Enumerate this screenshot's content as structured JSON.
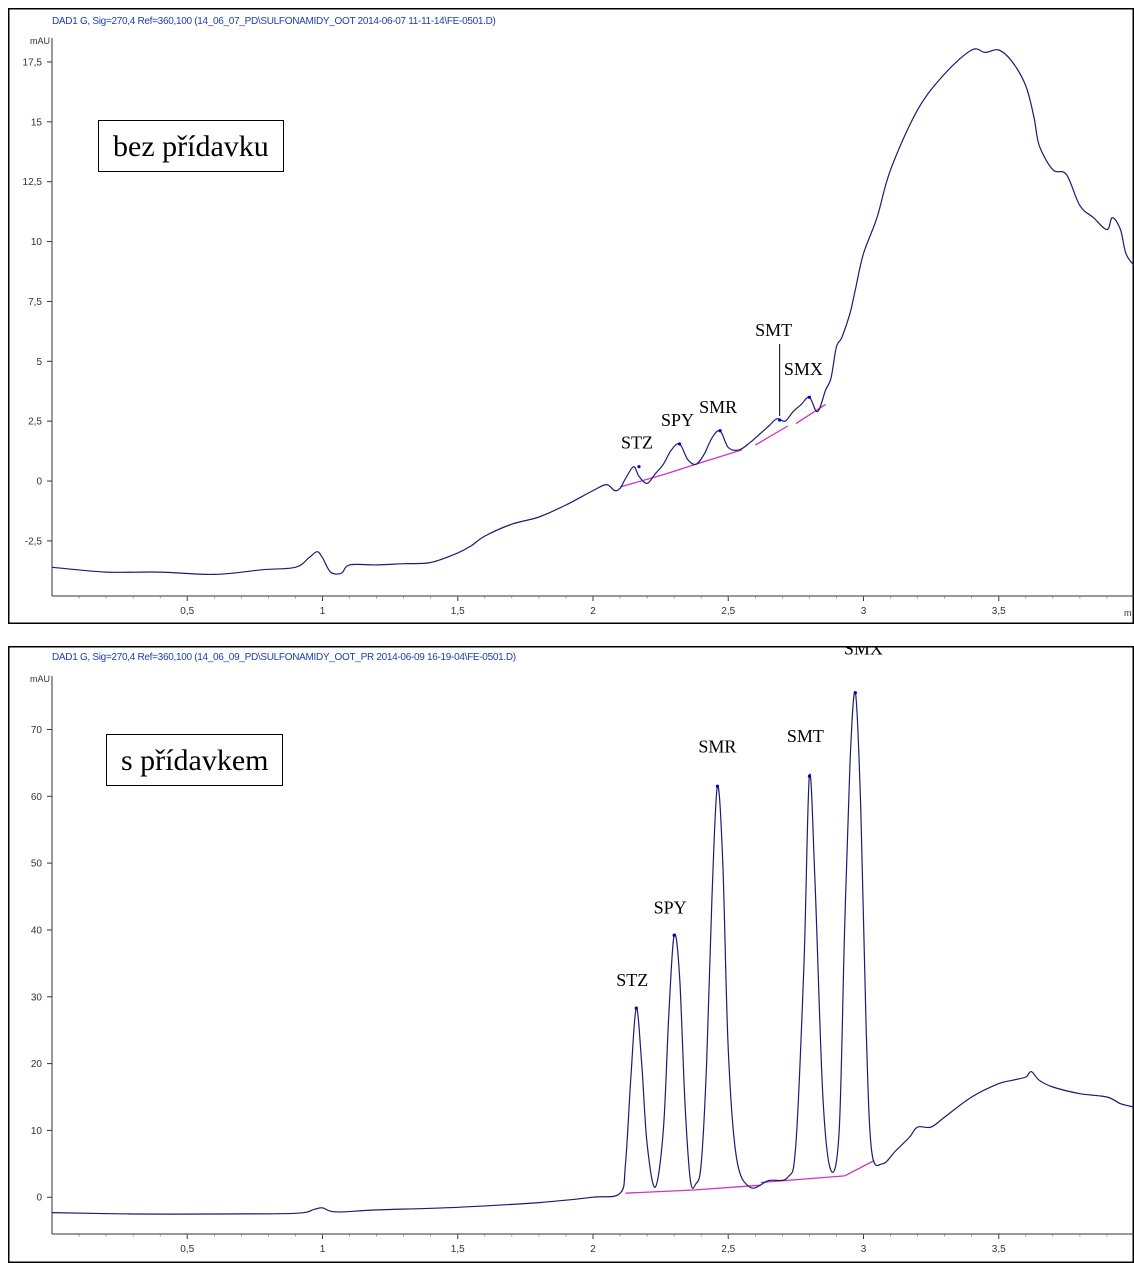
{
  "chart_data": [
    {
      "type": "line",
      "header": "DAD1 G, Sig=270,4 Ref=360,100 (14_06_07_PD\\SULFONAMIDY_OOT 2014-06-07 11-11-14\\FE-0501.D)",
      "label": "bez přídavku",
      "ylabel": "mAU",
      "xunit": "m",
      "xlim": [
        0,
        4.0
      ],
      "ylim": [
        -4.8,
        18.5
      ],
      "xticks": [
        {
          "v": 0.5,
          "t": "0,5"
        },
        {
          "v": 1,
          "t": "1"
        },
        {
          "v": 1.5,
          "t": "1,5"
        },
        {
          "v": 2,
          "t": "2"
        },
        {
          "v": 2.5,
          "t": "2,5"
        },
        {
          "v": 3,
          "t": "3"
        },
        {
          "v": 3.5,
          "t": "3,5"
        }
      ],
      "yticks": [
        {
          "v": 17.5,
          "t": "17,5"
        },
        {
          "v": 15,
          "t": "15"
        },
        {
          "v": 12.5,
          "t": "12,5"
        },
        {
          "v": 10,
          "t": "10"
        },
        {
          "v": 7.5,
          "t": "7,5"
        },
        {
          "v": 5,
          "t": "5"
        },
        {
          "v": 2.5,
          "t": "2,5"
        },
        {
          "v": 0,
          "t": "0"
        },
        {
          "v": -2.5,
          "t": "-2,5"
        }
      ],
      "x": [
        0.0,
        0.2,
        0.4,
        0.6,
        0.78,
        0.9,
        0.95,
        0.98,
        1.0,
        1.03,
        1.07,
        1.1,
        1.2,
        1.3,
        1.4,
        1.5,
        1.55,
        1.6,
        1.7,
        1.8,
        1.9,
        2.0,
        2.05,
        2.08,
        2.1,
        2.12,
        2.15,
        2.17,
        2.2,
        2.23,
        2.26,
        2.29,
        2.32,
        2.35,
        2.38,
        2.41,
        2.44,
        2.47,
        2.5,
        2.54,
        2.58,
        2.62,
        2.65,
        2.68,
        2.71,
        2.74,
        2.77,
        2.8,
        2.83,
        2.86,
        2.88,
        2.9,
        2.92,
        2.95,
        2.97,
        3.0,
        3.05,
        3.1,
        3.2,
        3.3,
        3.4,
        3.45,
        3.5,
        3.55,
        3.6,
        3.63,
        3.65,
        3.7,
        3.75,
        3.8,
        3.85,
        3.9,
        3.92,
        3.95,
        3.97,
        4.0
      ],
      "y": [
        -3.6,
        -3.8,
        -3.8,
        -3.9,
        -3.7,
        -3.6,
        -3.2,
        -2.95,
        -3.2,
        -3.8,
        -3.85,
        -3.5,
        -3.5,
        -3.45,
        -3.4,
        -3.0,
        -2.7,
        -2.3,
        -1.8,
        -1.5,
        -1.0,
        -0.4,
        -0.15,
        -0.4,
        -0.3,
        0.1,
        0.6,
        0.2,
        -0.1,
        0.3,
        0.7,
        1.3,
        1.55,
        0.9,
        0.7,
        1.1,
        1.8,
        2.1,
        1.4,
        1.3,
        1.6,
        2.0,
        2.3,
        2.6,
        2.5,
        2.9,
        3.2,
        3.5,
        2.9,
        3.8,
        4.3,
        5.6,
        6.0,
        7.0,
        8.0,
        9.5,
        11.0,
        13.0,
        15.5,
        17.0,
        18.0,
        17.9,
        18.0,
        17.5,
        16.5,
        15.2,
        14.0,
        13.0,
        12.8,
        11.5,
        11.0,
        10.5,
        11.0,
        10.5,
        9.5,
        9.0
      ],
      "baselines": [
        {
          "x": [
            2.1,
            2.27
          ],
          "y": [
            -0.25,
            0.3
          ]
        },
        {
          "x": [
            2.27,
            2.38
          ],
          "y": [
            0.3,
            0.7
          ]
        },
        {
          "x": [
            2.38,
            2.55
          ],
          "y": [
            0.7,
            1.3
          ]
        },
        {
          "x": [
            2.6,
            2.72
          ],
          "y": [
            1.5,
            2.3
          ]
        },
        {
          "x": [
            2.75,
            2.86
          ],
          "y": [
            2.4,
            3.2
          ]
        }
      ],
      "peaks": [
        {
          "name": "STZ",
          "x": 2.17,
          "y": 0.6
        },
        {
          "name": "SPY",
          "x": 2.32,
          "y": 1.55
        },
        {
          "name": "SMR",
          "x": 2.47,
          "y": 2.1
        },
        {
          "name": "SMT",
          "x": 2.69,
          "y": 2.55
        },
        {
          "name": "SMX",
          "x": 2.8,
          "y": 3.5
        }
      ]
    },
    {
      "type": "line",
      "header": "DAD1 G, Sig=270,4 Ref=360,100 (14_06_09_PD\\SULFONAMIDY_OOT_PR 2014-06-09 16-19-04\\FE-0501.D)",
      "label": "s přídavkem",
      "ylabel": "mAU",
      "xunit": "",
      "xlim": [
        0,
        4.0
      ],
      "ylim": [
        -5.5,
        78
      ],
      "xticks": [
        {
          "v": 0.5,
          "t": "0,5"
        },
        {
          "v": 1,
          "t": "1"
        },
        {
          "v": 1.5,
          "t": "1,5"
        },
        {
          "v": 2,
          "t": "2"
        },
        {
          "v": 2.5,
          "t": "2,5"
        },
        {
          "v": 3,
          "t": "3"
        },
        {
          "v": 3.5,
          "t": "3,5"
        }
      ],
      "yticks": [
        {
          "v": 70,
          "t": "70"
        },
        {
          "v": 60,
          "t": "60"
        },
        {
          "v": 50,
          "t": "50"
        },
        {
          "v": 40,
          "t": "40"
        },
        {
          "v": 30,
          "t": "30"
        },
        {
          "v": 20,
          "t": "20"
        },
        {
          "v": 10,
          "t": "10"
        },
        {
          "v": 0,
          "t": "0"
        }
      ],
      "x": [
        0.0,
        0.3,
        0.6,
        0.9,
        0.97,
        1.0,
        1.05,
        1.2,
        1.5,
        1.8,
        2.0,
        2.1,
        2.12,
        2.14,
        2.16,
        2.18,
        2.2,
        2.23,
        2.26,
        2.28,
        2.3,
        2.32,
        2.34,
        2.36,
        2.38,
        2.4,
        2.42,
        2.44,
        2.46,
        2.48,
        2.5,
        2.53,
        2.58,
        2.65,
        2.72,
        2.75,
        2.78,
        2.8,
        2.82,
        2.85,
        2.88,
        2.91,
        2.93,
        2.95,
        2.97,
        2.99,
        3.01,
        3.03,
        3.07,
        3.12,
        3.17,
        3.2,
        3.25,
        3.3,
        3.4,
        3.5,
        3.55,
        3.6,
        3.62,
        3.65,
        3.7,
        3.8,
        3.9,
        3.95,
        4.0
      ],
      "y": [
        -2.3,
        -2.5,
        -2.5,
        -2.4,
        -1.8,
        -1.6,
        -2.2,
        -1.9,
        -1.5,
        -0.8,
        0.0,
        0.6,
        5,
        18,
        28.3,
        20,
        8,
        1.5,
        10,
        27,
        39.2,
        33,
        14,
        2.5,
        2.0,
        5,
        20,
        45,
        61.5,
        50,
        22,
        6,
        1.5,
        2.5,
        3.0,
        8,
        35,
        63,
        48,
        15,
        4,
        10,
        40,
        65,
        75.5,
        58,
        25,
        7,
        5,
        7,
        9,
        10.5,
        10.5,
        12,
        15,
        17,
        17.5,
        18,
        18.8,
        17.5,
        16.5,
        15.5,
        15,
        14,
        13.5
      ],
      "baselines": [
        {
          "x": [
            2.12,
            2.38
          ],
          "y": [
            0.6,
            1.1
          ]
        },
        {
          "x": [
            2.38,
            2.62
          ],
          "y": [
            1.1,
            1.8
          ]
        },
        {
          "x": [
            2.62,
            2.93
          ],
          "y": [
            2.2,
            3.2
          ]
        },
        {
          "x": [
            2.93,
            3.04
          ],
          "y": [
            3.2,
            5.5
          ]
        }
      ],
      "peaks": [
        {
          "name": "STZ",
          "x": 2.16,
          "y": 28.3
        },
        {
          "name": "SPY",
          "x": 2.3,
          "y": 39.2
        },
        {
          "name": "SMR",
          "x": 2.46,
          "y": 61.5
        },
        {
          "name": "SMT",
          "x": 2.8,
          "y": 63.0
        },
        {
          "name": "SMX",
          "x": 2.97,
          "y": 75.5
        }
      ]
    }
  ],
  "colors": {
    "trace": "#1c1c6e",
    "baseline": "#cc33cc",
    "peak_tip": "#0000cc",
    "header": "#1a3fb0"
  }
}
